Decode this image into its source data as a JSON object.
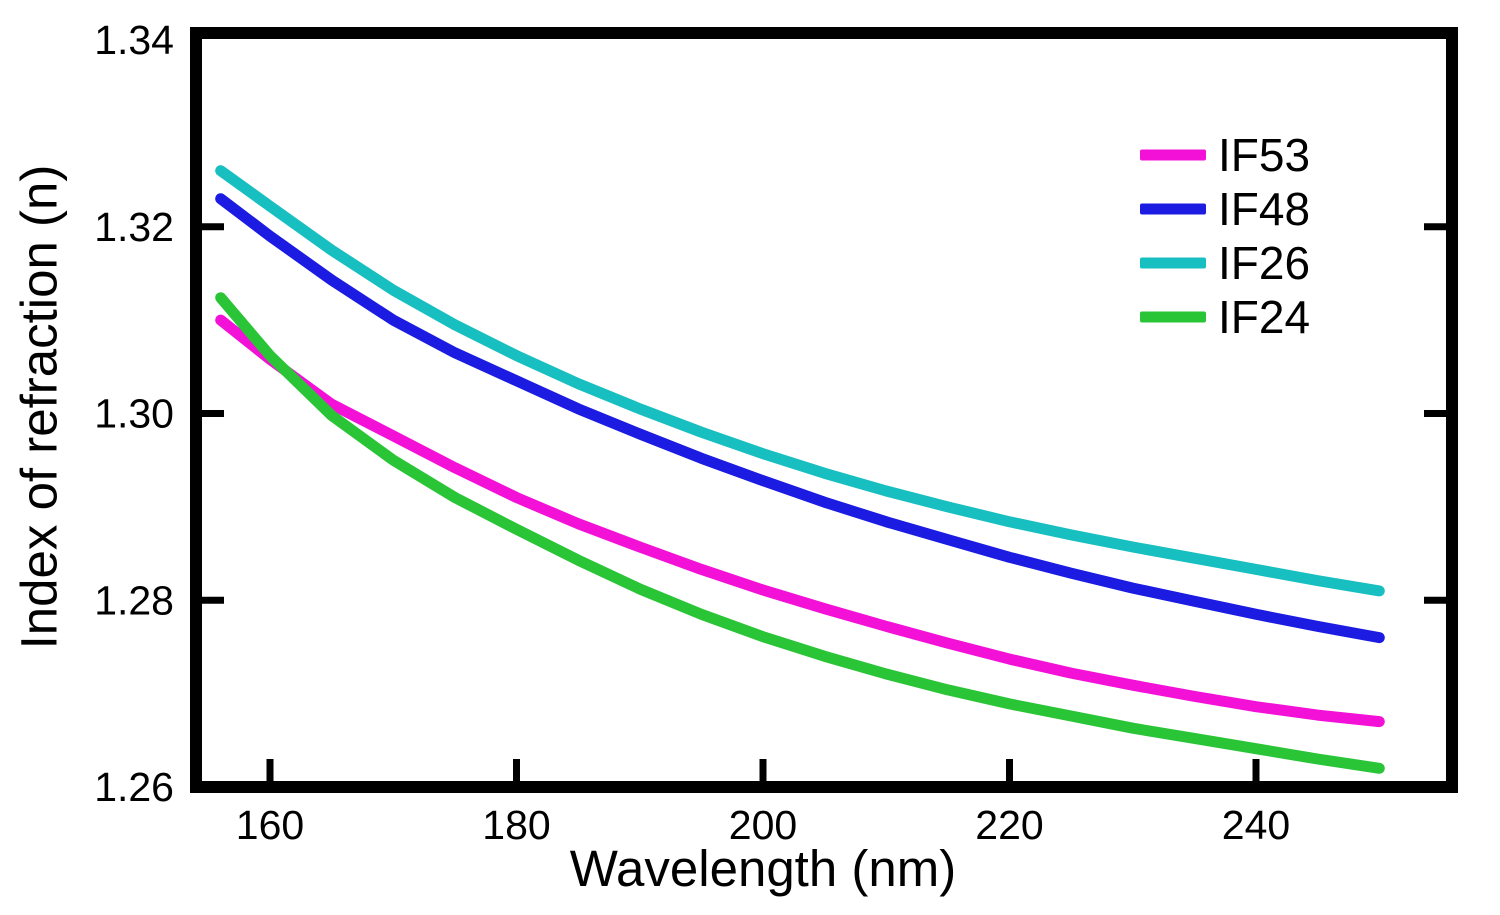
{
  "figure": {
    "background": "#ffffff",
    "text_color": "#000000"
  },
  "chart_data": {
    "type": "line",
    "title": "",
    "xlabel": "Wavelength (nm)",
    "ylabel": "Index of refraction (n)",
    "xlim": [
      154,
      256
    ],
    "ylim": [
      1.26,
      1.341
    ],
    "grid": false,
    "legend_position": "upper-right",
    "axis_color": "#000000",
    "x_ticks": [
      {
        "value": 160,
        "label": "160"
      },
      {
        "value": 180,
        "label": "180"
      },
      {
        "value": 200,
        "label": "200"
      },
      {
        "value": 220,
        "label": "220"
      },
      {
        "value": 240,
        "label": "240"
      }
    ],
    "y_ticks": [
      {
        "value": 1.34,
        "label": "1.34",
        "mark": false
      },
      {
        "value": 1.32,
        "label": "1.32",
        "mark": true
      },
      {
        "value": 1.3,
        "label": "1.30",
        "mark": true
      },
      {
        "value": 1.28,
        "label": "1.28",
        "mark": true
      },
      {
        "value": 1.26,
        "label": "1.26",
        "mark": false
      }
    ],
    "x": [
      156,
      160,
      165,
      170,
      175,
      180,
      185,
      190,
      195,
      200,
      205,
      210,
      215,
      220,
      225,
      230,
      235,
      240,
      245,
      250
    ],
    "series": [
      {
        "name": "IF53",
        "color": "#F311D7",
        "values": [
          1.31,
          1.3058,
          1.301,
          1.2976,
          1.2942,
          1.291,
          1.2882,
          1.2857,
          1.2833,
          1.2811,
          1.2791,
          1.2772,
          1.2754,
          1.2737,
          1.2722,
          1.2709,
          1.2697,
          1.2686,
          1.2677,
          1.267
        ]
      },
      {
        "name": "IF48",
        "color": "#1B1BE1",
        "values": [
          1.323,
          1.319,
          1.3143,
          1.31,
          1.3065,
          1.3035,
          1.3005,
          1.2978,
          1.2952,
          1.2928,
          1.2905,
          1.2884,
          1.2865,
          1.2846,
          1.2829,
          1.2813,
          1.2799,
          1.2785,
          1.2772,
          1.276
        ]
      },
      {
        "name": "IF26",
        "color": "#18BFC0",
        "values": [
          1.326,
          1.3222,
          1.3175,
          1.3132,
          1.3095,
          1.3062,
          1.3032,
          1.3005,
          1.298,
          1.2957,
          1.2936,
          1.2917,
          1.29,
          1.2884,
          1.287,
          1.2857,
          1.2845,
          1.2833,
          1.2821,
          1.281
        ]
      },
      {
        "name": "IF24",
        "color": "#2AC437",
        "values": [
          1.3124,
          1.3062,
          1.2998,
          1.295,
          1.291,
          1.2876,
          1.2843,
          1.2812,
          1.2785,
          1.2761,
          1.274,
          1.2721,
          1.2704,
          1.2689,
          1.2676,
          1.2663,
          1.2652,
          1.2641,
          1.263,
          1.262
        ]
      }
    ]
  }
}
